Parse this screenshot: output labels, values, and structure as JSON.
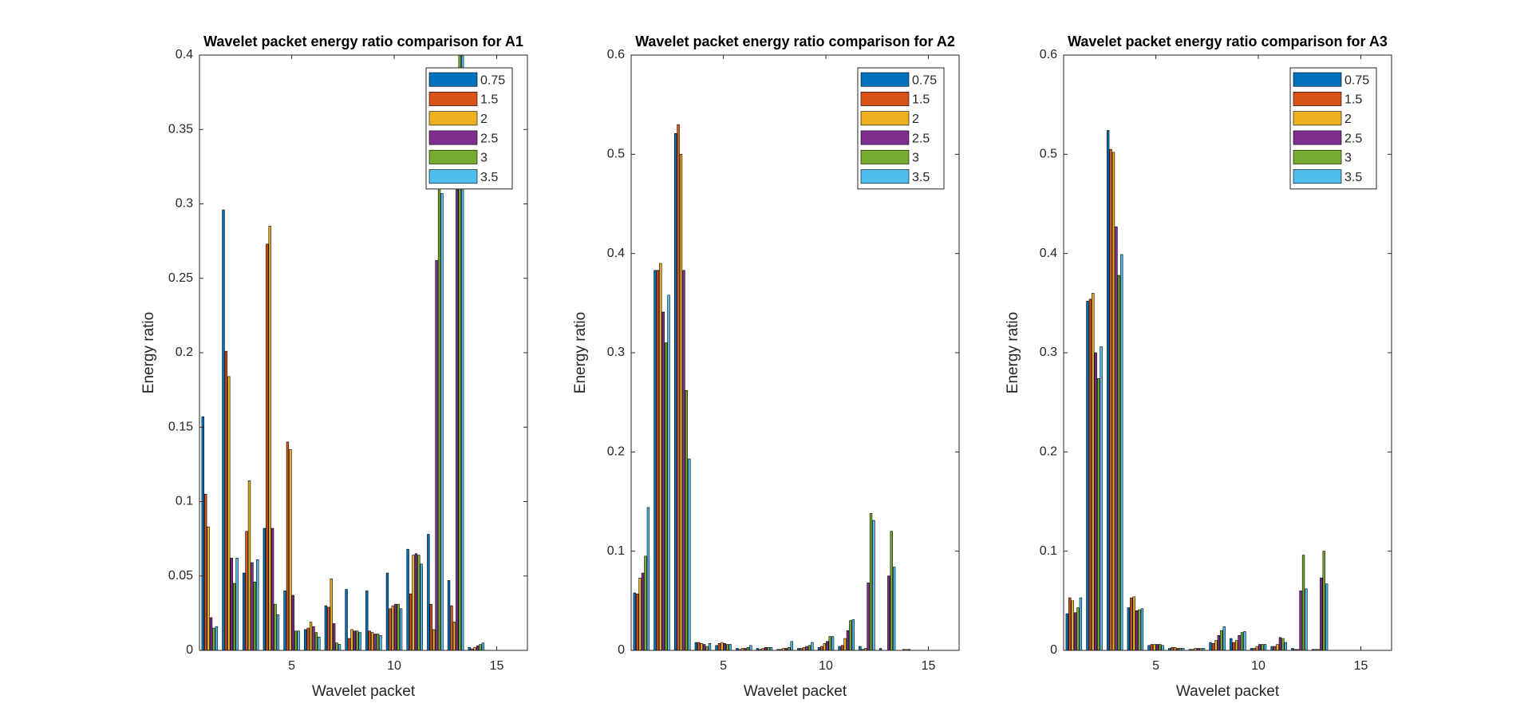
{
  "chart_data": [
    {
      "type": "bar",
      "title": "Wavelet packet energy ratio comparison for A1",
      "xlabel": "Wavelet packet",
      "ylabel": "Energy ratio",
      "x": [
        1,
        2,
        3,
        4,
        5,
        6,
        7,
        8,
        9,
        10,
        11,
        12,
        13,
        14,
        15,
        16
      ],
      "xlim": [
        0.5,
        16.5
      ],
      "xticks": [
        5,
        10,
        15
      ],
      "ylim": [
        0,
        0.4
      ],
      "yticks": [
        0,
        0.05,
        0.1,
        0.15,
        0.2,
        0.25,
        0.3,
        0.35,
        0.4
      ],
      "legend": "northeast",
      "series": [
        {
          "name": "0.75",
          "color": "#0072BD",
          "values": [
            0.157,
            0.296,
            0.052,
            0.082,
            0.04,
            0.014,
            0.03,
            0.041,
            0.04,
            0.052,
            0.068,
            0.078,
            0.047,
            0.002,
            0,
            0
          ]
        },
        {
          "name": "1.5",
          "color": "#D95319",
          "values": [
            0.105,
            0.201,
            0.08,
            0.273,
            0.14,
            0.015,
            0.029,
            0.008,
            0.013,
            0.028,
            0.038,
            0.031,
            0.03,
            0.001,
            0,
            0
          ]
        },
        {
          "name": "2",
          "color": "#EDB120",
          "values": [
            0.083,
            0.184,
            0.114,
            0.285,
            0.135,
            0.019,
            0.048,
            0.014,
            0.012,
            0.03,
            0.064,
            0.014,
            0.019,
            0.002,
            0,
            0
          ]
        },
        {
          "name": "2.5",
          "color": "#7E2F8E",
          "values": [
            0.022,
            0.062,
            0.059,
            0.082,
            0.037,
            0.016,
            0.018,
            0.013,
            0.011,
            0.031,
            0.065,
            0.262,
            0.38,
            0.003,
            0,
            0
          ]
        },
        {
          "name": "3",
          "color": "#77AC30",
          "values": [
            0.015,
            0.045,
            0.046,
            0.031,
            0.013,
            0.012,
            0.005,
            0.013,
            0.011,
            0.031,
            0.064,
            0.32,
            0.42,
            0.004,
            0,
            0
          ]
        },
        {
          "name": "3.5",
          "color": "#4DBEEE",
          "values": [
            0.016,
            0.062,
            0.061,
            0.024,
            0.013,
            0.009,
            0.004,
            0.012,
            0.01,
            0.028,
            0.058,
            0.307,
            0.41,
            0.005,
            0,
            0
          ]
        }
      ]
    },
    {
      "type": "bar",
      "title": "Wavelet packet energy ratio comparison for A2",
      "xlabel": "Wavelet packet",
      "ylabel": "Energy ratio",
      "x": [
        1,
        2,
        3,
        4,
        5,
        6,
        7,
        8,
        9,
        10,
        11,
        12,
        13,
        14,
        15,
        16
      ],
      "xlim": [
        0.5,
        16.5
      ],
      "xticks": [
        5,
        10,
        15
      ],
      "ylim": [
        0,
        0.6
      ],
      "yticks": [
        0,
        0.1,
        0.2,
        0.3,
        0.4,
        0.5,
        0.6
      ],
      "legend": "northeast",
      "series": [
        {
          "name": "0.75",
          "color": "#0072BD",
          "values": [
            0.058,
            0.383,
            0.521,
            0.008,
            0.005,
            0.002,
            0.002,
            0.001,
            0.002,
            0.003,
            0.004,
            0.004,
            0.002,
            0,
            0,
            0
          ]
        },
        {
          "name": "1.5",
          "color": "#D95319",
          "values": [
            0.057,
            0.383,
            0.53,
            0.008,
            0.007,
            0.001,
            0.001,
            0.001,
            0.002,
            0.004,
            0.005,
            0.001,
            0,
            0.001,
            0,
            0
          ]
        },
        {
          "name": "2",
          "color": "#EDB120",
          "values": [
            0.073,
            0.39,
            0.5,
            0.007,
            0.008,
            0.002,
            0.002,
            0.002,
            0.003,
            0.007,
            0.012,
            0.002,
            0,
            0.001,
            0,
            0
          ]
        },
        {
          "name": "2.5",
          "color": "#7E2F8E",
          "values": [
            0.078,
            0.341,
            0.383,
            0.006,
            0.007,
            0.002,
            0.003,
            0.002,
            0.004,
            0.009,
            0.02,
            0.068,
            0.075,
            0.001,
            0,
            0
          ]
        },
        {
          "name": "3",
          "color": "#77AC30",
          "values": [
            0.095,
            0.31,
            0.262,
            0.004,
            0.006,
            0.003,
            0.003,
            0.003,
            0.005,
            0.014,
            0.03,
            0.138,
            0.12,
            0,
            0,
            0
          ]
        },
        {
          "name": "3.5",
          "color": "#4DBEEE",
          "values": [
            0.144,
            0.358,
            0.193,
            0.007,
            0.006,
            0.005,
            0.003,
            0.009,
            0.008,
            0.014,
            0.031,
            0.131,
            0.084,
            0,
            0,
            0
          ]
        }
      ]
    },
    {
      "type": "bar",
      "title": "Wavelet packet energy ratio comparison for A3",
      "xlabel": "Wavelet packet",
      "ylabel": "Energy ratio",
      "x": [
        1,
        2,
        3,
        4,
        5,
        6,
        7,
        8,
        9,
        10,
        11,
        12,
        13,
        14,
        15,
        16
      ],
      "xlim": [
        0.5,
        16.5
      ],
      "xticks": [
        5,
        10,
        15
      ],
      "ylim": [
        0,
        0.6
      ],
      "yticks": [
        0,
        0.1,
        0.2,
        0.3,
        0.4,
        0.5,
        0.6
      ],
      "legend": "northeast",
      "series": [
        {
          "name": "0.75",
          "color": "#0072BD",
          "values": [
            0.037,
            0.352,
            0.524,
            0.043,
            0.005,
            0.002,
            0.001,
            0.008,
            0.012,
            0.002,
            0.004,
            0.002,
            0.001,
            0,
            0,
            0
          ]
        },
        {
          "name": "1.5",
          "color": "#D95319",
          "values": [
            0.053,
            0.354,
            0.505,
            0.053,
            0.006,
            0.003,
            0.001,
            0.007,
            0.008,
            0.002,
            0.004,
            0.001,
            0.001,
            0,
            0,
            0
          ]
        },
        {
          "name": "2",
          "color": "#EDB120",
          "values": [
            0.05,
            0.36,
            0.502,
            0.054,
            0.006,
            0.003,
            0.002,
            0.01,
            0.01,
            0.004,
            0.006,
            0.001,
            0.001,
            0,
            0,
            0
          ]
        },
        {
          "name": "2.5",
          "color": "#7E2F8E",
          "values": [
            0.038,
            0.3,
            0.427,
            0.04,
            0.006,
            0.002,
            0.002,
            0.015,
            0.015,
            0.006,
            0.013,
            0.06,
            0.073,
            0,
            0,
            0
          ]
        },
        {
          "name": "3",
          "color": "#77AC30",
          "values": [
            0.043,
            0.274,
            0.378,
            0.041,
            0.006,
            0.002,
            0.002,
            0.02,
            0.018,
            0.006,
            0.012,
            0.096,
            0.1,
            0,
            0,
            0
          ]
        },
        {
          "name": "3.5",
          "color": "#4DBEEE",
          "values": [
            0.053,
            0.306,
            0.399,
            0.042,
            0.005,
            0.002,
            0.002,
            0.024,
            0.019,
            0.006,
            0.008,
            0.062,
            0.067,
            0,
            0,
            0
          ]
        }
      ]
    }
  ]
}
